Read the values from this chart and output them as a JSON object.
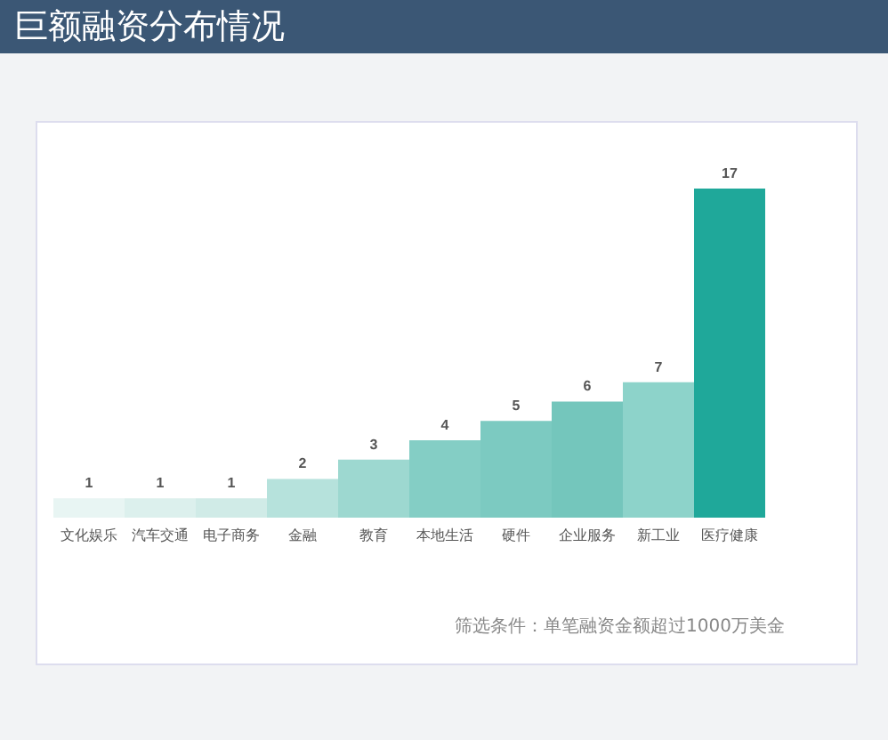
{
  "chart_data": {
    "type": "bar",
    "title": "巨额融资分布情况",
    "categories": [
      "文化娱乐",
      "汽车交通",
      "电子商务",
      "金融",
      "教育",
      "本地生活",
      "硬件",
      "企业服务",
      "新工业",
      "医疗健康"
    ],
    "values": [
      1,
      1,
      1,
      2,
      3,
      4,
      5,
      6,
      7,
      17
    ],
    "colors": [
      "#e8f5f3",
      "#dcf0ed",
      "#d0ebe7",
      "#b6e2dc",
      "#9dd8d0",
      "#84cec5",
      "#7ccac1",
      "#74c6bc",
      "#8dd3ca",
      "#1fa89a"
    ],
    "data_labels": true,
    "annotations": [
      "筛选条件：单笔融资金额超过1000万美金"
    ]
  }
}
